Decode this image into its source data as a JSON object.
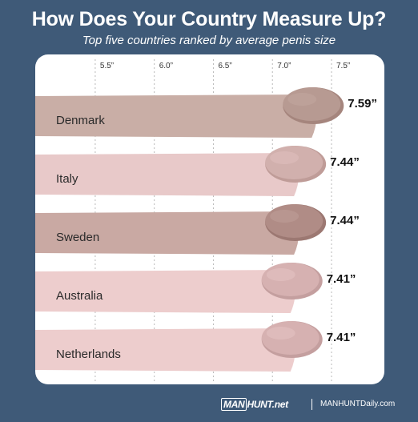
{
  "header": {
    "title": "How Does Your Country Measure Up?",
    "subtitle": "Top five countries ranked by average penis size"
  },
  "chart_data": {
    "type": "bar",
    "orientation": "horizontal",
    "title": "How Does Your Country Measure Up?",
    "subtitle": "Top five countries ranked by average penis size",
    "categories": [
      "Denmark",
      "Italy",
      "Sweden",
      "Australia",
      "Netherlands"
    ],
    "values": [
      7.59,
      7.44,
      7.44,
      7.41,
      7.41
    ],
    "value_labels": [
      "7.59”",
      "7.44”",
      "7.44”",
      "7.41”",
      "7.41”"
    ],
    "xticks": [
      5.5,
      6.0,
      6.5,
      7.0,
      7.5
    ],
    "xtick_labels": [
      "5.5”",
      "6.0”",
      "6.5”",
      "7.0”",
      "7.5”"
    ],
    "xlim": [
      5.06,
      7.5
    ],
    "grid": "vertical dashed",
    "legend": "none",
    "colors": {
      "Denmark": {
        "body": "#c9aea6",
        "tip": "#b79a92",
        "tip_edge": "#a5857d"
      },
      "Italy": {
        "body": "#e8c9c9",
        "tip": "#d1b0ad",
        "tip_edge": "#bf9c98"
      },
      "Sweden": {
        "body": "#c9a9a3",
        "tip": "#b08c86",
        "tip_edge": "#9c7872"
      },
      "Australia": {
        "body": "#edcdcd",
        "tip": "#d6b1b1",
        "tip_edge": "#c49f9f"
      },
      "Netherlands": {
        "body": "#edcdcd",
        "tip": "#d6b1b1",
        "tip_edge": "#c49f9f"
      }
    }
  },
  "footer": {
    "logo_boxed": "MAN",
    "logo_text": "HUNT.net",
    "site": "MANHUNTDaily.com"
  }
}
